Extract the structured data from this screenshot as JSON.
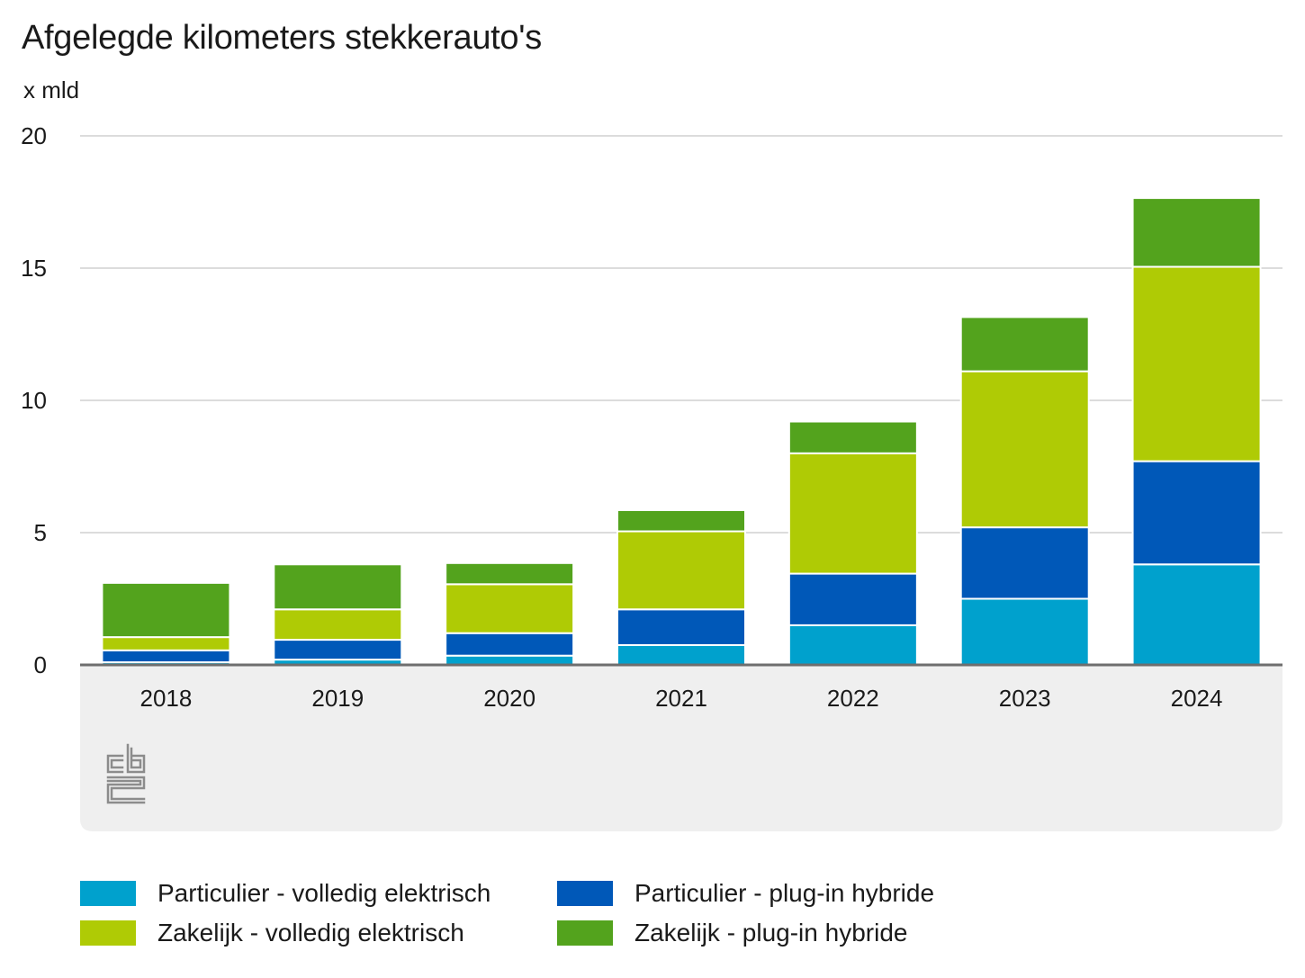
{
  "title": "Afgelegde kilometers stekkerauto's",
  "unit_label": "x mld",
  "chart_data": {
    "type": "bar",
    "stacked": true,
    "title": "Afgelegde kilometers stekkerauto's",
    "ylabel": "x mld",
    "xlabel": "",
    "ylim": [
      0,
      20
    ],
    "yticks": [
      "0",
      "5",
      "10",
      "15",
      "20"
    ],
    "grid": true,
    "legend_position": "bottom",
    "categories": [
      "2018",
      "2019",
      "2020",
      "2021",
      "2022",
      "2023",
      "2024"
    ],
    "series": [
      {
        "name": "Particulier - volledig elektrisch",
        "color": "#00a1cd",
        "values": [
          0.1,
          0.2,
          0.35,
          0.75,
          1.5,
          2.5,
          3.8
        ]
      },
      {
        "name": "Particulier - plug-in hybride",
        "color": "#0058b8",
        "values": [
          0.45,
          0.75,
          0.85,
          1.35,
          1.95,
          2.7,
          3.9
        ]
      },
      {
        "name": "Zakelijk - volledig elektrisch",
        "color": "#afcb05",
        "values": [
          0.5,
          1.15,
          1.85,
          2.95,
          4.55,
          5.9,
          7.35
        ]
      },
      {
        "name": "Zakelijk - plug-in hybride",
        "color": "#53a31d",
        "values": [
          2.05,
          1.7,
          0.8,
          0.8,
          1.2,
          2.05,
          2.6
        ]
      }
    ]
  },
  "colors": {
    "grid": "#c8c8c8",
    "baseline": "#6e6e6e",
    "axis_area": "#efefef",
    "logo": "#8c8c8c"
  },
  "logo_icon": "cbs-logo-icon"
}
